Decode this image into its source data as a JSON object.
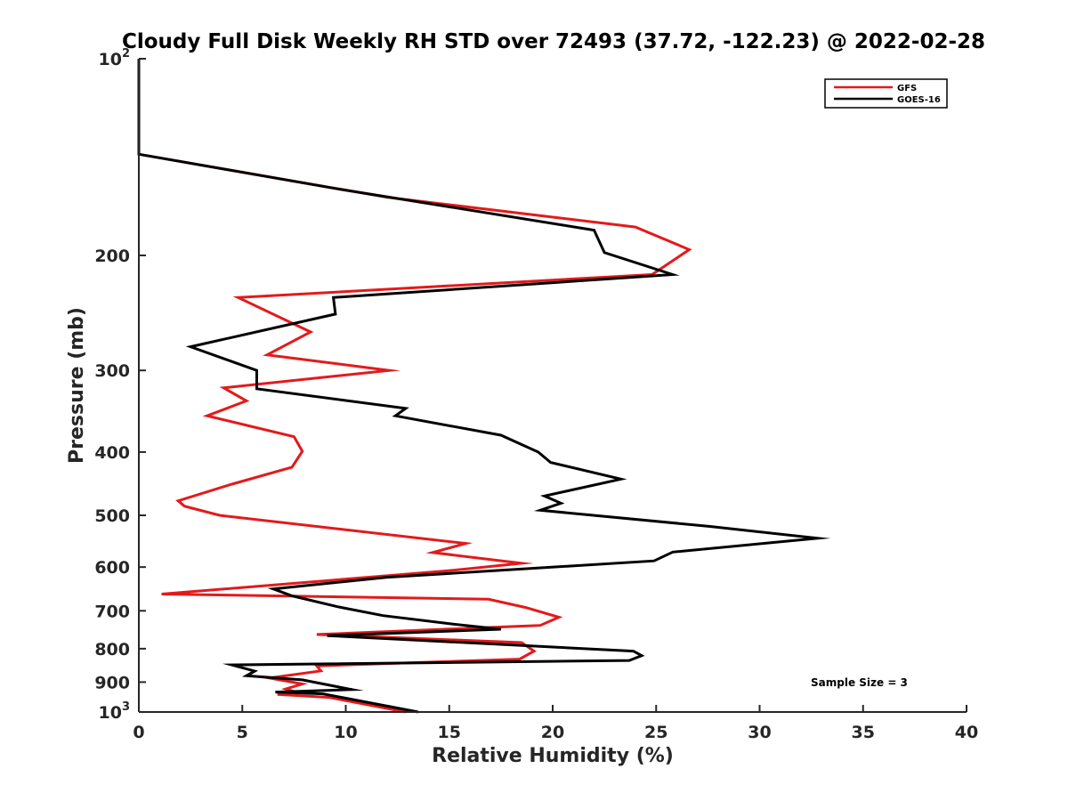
{
  "chart_data": {
    "type": "line",
    "title": "Cloudy Full Disk Weekly RH STD over 72493 (37.72, -122.23) @ 2022-02-28",
    "xlabel": "Relative Humidity (%)",
    "ylabel": "Pressure (mb)",
    "xlim": [
      0,
      40
    ],
    "ylim": [
      100,
      1000
    ],
    "y_scale": "log",
    "y_reversed": true,
    "grid": false,
    "legend_position": "top-right",
    "x_ticks": [
      0,
      5,
      10,
      15,
      20,
      25,
      30,
      35,
      40
    ],
    "y_ticks": [
      {
        "value": 100,
        "label": "10",
        "sup": "2"
      },
      {
        "value": 200,
        "label": "200",
        "sup": ""
      },
      {
        "value": 300,
        "label": "300",
        "sup": ""
      },
      {
        "value": 400,
        "label": "400",
        "sup": ""
      },
      {
        "value": 500,
        "label": "500",
        "sup": ""
      },
      {
        "value": 600,
        "label": "600",
        "sup": ""
      },
      {
        "value": 700,
        "label": "700",
        "sup": ""
      },
      {
        "value": 800,
        "label": "800",
        "sup": ""
      },
      {
        "value": 900,
        "label": "900",
        "sup": ""
      },
      {
        "value": 1000,
        "label": "10",
        "sup": "3"
      }
    ],
    "series": [
      {
        "name": "GFS",
        "color": "#e31a1c",
        "points": [
          [
            0,
            100
          ],
          [
            0,
            140
          ],
          [
            12,
            163
          ],
          [
            24,
            181
          ],
          [
            26.6,
            196
          ],
          [
            24.8,
            214
          ],
          [
            4.8,
            232
          ],
          [
            8.3,
            262
          ],
          [
            6.2,
            284
          ],
          [
            12.1,
            300
          ],
          [
            4.1,
            319
          ],
          [
            5.2,
            334
          ],
          [
            3.3,
            352
          ],
          [
            7.5,
            379
          ],
          [
            7.9,
            399
          ],
          [
            7.4,
            422
          ],
          [
            4.5,
            448
          ],
          [
            1.9,
            475
          ],
          [
            2.2,
            484
          ],
          [
            3.9,
            500
          ],
          [
            15.8,
            552
          ],
          [
            14.2,
            570
          ],
          [
            18.5,
            592
          ],
          [
            14.9,
            608
          ],
          [
            1.1,
            660
          ],
          [
            16.9,
            672
          ],
          [
            18.7,
            692
          ],
          [
            20.3,
            716
          ],
          [
            19.4,
            737
          ],
          [
            17.6,
            741
          ],
          [
            8.6,
            761
          ],
          [
            18.5,
            783
          ],
          [
            19.1,
            807
          ],
          [
            18.4,
            830
          ],
          [
            8.6,
            850
          ],
          [
            8.8,
            865
          ],
          [
            6.3,
            887
          ],
          [
            7.9,
            906
          ],
          [
            7.1,
            922
          ],
          [
            7.6,
            932
          ],
          [
            6.7,
            940
          ],
          [
            9.2,
            950
          ],
          [
            12.9,
            1000
          ]
        ]
      },
      {
        "name": "GOES-16",
        "color": "#000000",
        "points": [
          [
            0,
            100
          ],
          [
            0,
            140
          ],
          [
            9.5,
            158
          ],
          [
            22,
            183
          ],
          [
            22.5,
            198
          ],
          [
            25.8,
            214
          ],
          [
            9.4,
            232
          ],
          [
            9.5,
            246
          ],
          [
            2.5,
            276
          ],
          [
            5.7,
            300
          ],
          [
            5.7,
            320
          ],
          [
            12.9,
            343
          ],
          [
            12.4,
            352
          ],
          [
            17.5,
            377
          ],
          [
            19.3,
            400
          ],
          [
            19.9,
            415
          ],
          [
            23.3,
            440
          ],
          [
            19.6,
            467
          ],
          [
            20.4,
            479
          ],
          [
            19.4,
            491
          ],
          [
            27.6,
            520
          ],
          [
            32.8,
            542
          ],
          [
            25.8,
            569
          ],
          [
            24.9,
            587
          ],
          [
            12.0,
            622
          ],
          [
            6.5,
            648
          ],
          [
            7.4,
            664
          ],
          [
            9.6,
            690
          ],
          [
            11.8,
            712
          ],
          [
            15.1,
            733
          ],
          [
            17.5,
            747
          ],
          [
            9.1,
            764
          ],
          [
            23.9,
            807
          ],
          [
            24.3,
            820
          ],
          [
            23.7,
            834
          ],
          [
            4.5,
            847
          ],
          [
            5.6,
            866
          ],
          [
            5.2,
            880
          ],
          [
            7.9,
            893
          ],
          [
            10.3,
            924
          ],
          [
            6.6,
            932
          ],
          [
            8.9,
            938
          ],
          [
            13.5,
            1000
          ]
        ]
      }
    ],
    "annotation": "Sample Size = 3"
  }
}
